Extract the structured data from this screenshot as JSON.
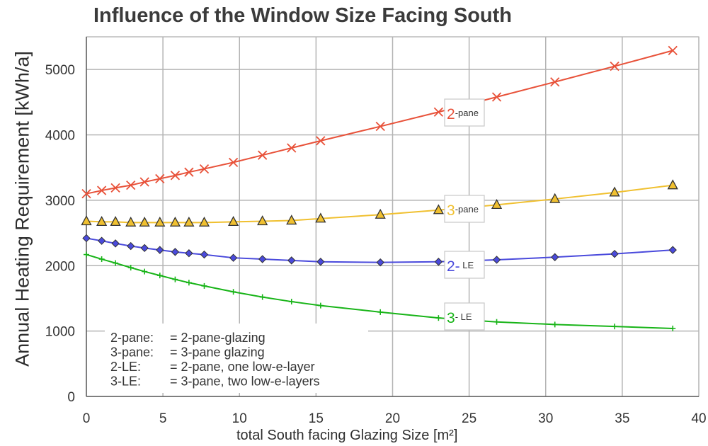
{
  "chart_data": {
    "type": "line",
    "title": "Influence of the Window Size Facing South",
    "xlabel": "total South facing Glazing Size   [m²]",
    "ylabel": "Annual Heating Requirement [kWh/a]",
    "xlim": [
      0,
      40
    ],
    "ylim": [
      0,
      5500
    ],
    "xticks": [
      0,
      5,
      10,
      15,
      20,
      25,
      30,
      35,
      40
    ],
    "yticks": [
      0,
      1000,
      2000,
      3000,
      4000,
      5000
    ],
    "grid": true,
    "series": [
      {
        "name": "2-pane",
        "color": "#e8523a",
        "marker": "x",
        "label_parts": [
          "2",
          "-pane"
        ],
        "x": [
          0,
          1,
          1.9,
          2.9,
          3.8,
          4.8,
          5.8,
          6.7,
          7.7,
          9.6,
          11.5,
          13.4,
          15.3,
          19.2,
          23,
          26.8,
          30.6,
          34.5,
          38.3
        ],
        "values": [
          3100,
          3150,
          3190,
          3230,
          3280,
          3330,
          3380,
          3430,
          3480,
          3580,
          3690,
          3800,
          3910,
          4130,
          4350,
          4580,
          4810,
          5050,
          5290
        ]
      },
      {
        "name": "3-pane",
        "color": "#f0c030",
        "marker": "triangle",
        "label_parts": [
          "3",
          "-pane"
        ],
        "x": [
          0,
          1,
          1.9,
          2.9,
          3.8,
          4.8,
          5.8,
          6.7,
          7.7,
          9.6,
          11.5,
          13.4,
          15.3,
          19.2,
          23,
          26.8,
          30.6,
          34.5,
          38.3
        ],
        "values": [
          2680,
          2670,
          2670,
          2660,
          2660,
          2660,
          2660,
          2660,
          2660,
          2670,
          2680,
          2690,
          2720,
          2780,
          2850,
          2930,
          3020,
          3120,
          3230
        ]
      },
      {
        "name": "2-LE",
        "color": "#4a4adc",
        "marker": "diamond",
        "label_parts": [
          "2-",
          " LE"
        ],
        "x": [
          0,
          1,
          1.9,
          2.9,
          3.8,
          4.8,
          5.8,
          6.7,
          7.7,
          9.6,
          11.5,
          13.4,
          15.3,
          19.2,
          23,
          26.8,
          30.6,
          34.5,
          38.3
        ],
        "values": [
          2420,
          2380,
          2340,
          2300,
          2270,
          2240,
          2210,
          2190,
          2170,
          2120,
          2100,
          2080,
          2060,
          2050,
          2060,
          2090,
          2130,
          2180,
          2240
        ]
      },
      {
        "name": "3-LE",
        "color": "#18b418",
        "marker": "plus",
        "label_parts": [
          "3",
          "- LE"
        ],
        "x": [
          0,
          1,
          1.9,
          2.9,
          3.8,
          4.8,
          5.8,
          6.7,
          7.7,
          9.6,
          11.5,
          13.4,
          15.3,
          19.2,
          23,
          26.8,
          30.6,
          34.5,
          38.3
        ],
        "values": [
          2170,
          2100,
          2040,
          1970,
          1910,
          1850,
          1790,
          1740,
          1690,
          1600,
          1520,
          1450,
          1390,
          1290,
          1200,
          1140,
          1100,
          1070,
          1040
        ]
      }
    ],
    "legend_notes": [
      {
        "key": "2-pane:",
        "desc": "= 2-pane-glazing"
      },
      {
        "key": "3-pane:",
        "desc": "= 3-pane glazing"
      },
      {
        "key": "2-LE:",
        "desc": "= 2-pane, one low-e-layer"
      },
      {
        "key": "3-LE:",
        "desc": "= 3-pane, two low-e-layers"
      }
    ]
  }
}
